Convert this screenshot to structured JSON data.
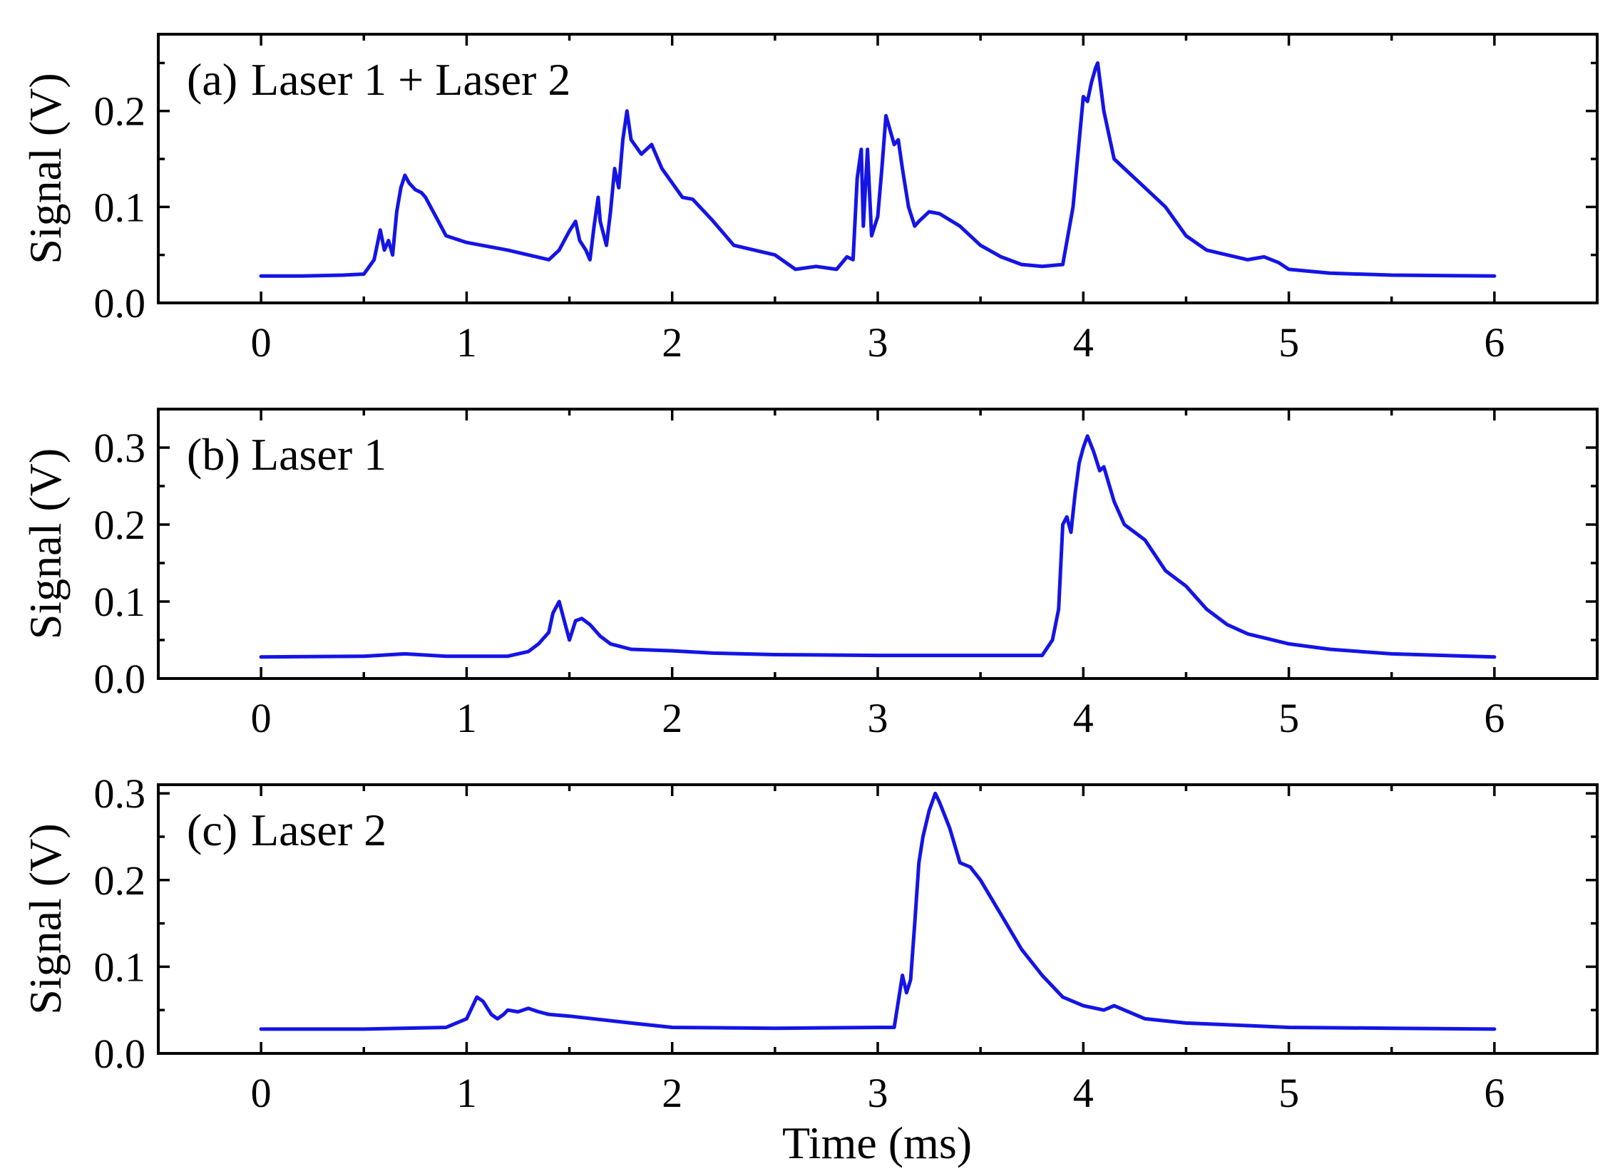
{
  "figure": {
    "xlabel": "Time (ms)",
    "ylabel": "Signal (V)",
    "line_color": "#1414e6"
  },
  "chart_data": [
    {
      "type": "line",
      "panel": "a",
      "label": "(a)",
      "title": "Laser 1 + Laser 2",
      "xlabel": "Time (ms)",
      "ylabel": "Signal (V)",
      "xlim": [
        -0.5,
        6.5
      ],
      "ylim": [
        0,
        0.28
      ],
      "xticks": [
        0,
        1,
        2,
        3,
        4,
        5,
        6
      ],
      "xtick_labels": [
        "0",
        "1",
        "2",
        "3",
        "4",
        "5",
        "6"
      ],
      "yticks": [
        0.0,
        0.1,
        0.2
      ],
      "ytick_labels": [
        "0.0",
        "0.1",
        "0.2"
      ],
      "series": [
        {
          "name": "Laser 1 + Laser 2",
          "x": [
            0,
            0.2,
            0.4,
            0.5,
            0.55,
            0.58,
            0.6,
            0.62,
            0.64,
            0.66,
            0.68,
            0.7,
            0.72,
            0.75,
            0.78,
            0.8,
            0.85,
            0.9,
            1.0,
            1.2,
            1.4,
            1.45,
            1.5,
            1.53,
            1.55,
            1.58,
            1.6,
            1.62,
            1.64,
            1.65,
            1.68,
            1.7,
            1.72,
            1.74,
            1.76,
            1.78,
            1.8,
            1.85,
            1.9,
            1.95,
            2.0,
            2.05,
            2.1,
            2.2,
            2.3,
            2.5,
            2.6,
            2.7,
            2.8,
            2.85,
            2.88,
            2.9,
            2.92,
            2.93,
            2.95,
            2.97,
            3.0,
            3.02,
            3.04,
            3.06,
            3.08,
            3.1,
            3.12,
            3.15,
            3.18,
            3.2,
            3.25,
            3.3,
            3.4,
            3.5,
            3.6,
            3.7,
            3.8,
            3.9,
            3.95,
            4.0,
            4.02,
            4.04,
            4.06,
            4.07,
            4.1,
            4.15,
            4.2,
            4.3,
            4.4,
            4.5,
            4.6,
            4.7,
            4.8,
            4.88,
            4.95,
            5.0,
            5.2,
            5.5,
            6.0
          ],
          "y": [
            0.028,
            0.028,
            0.029,
            0.03,
            0.045,
            0.076,
            0.055,
            0.065,
            0.05,
            0.095,
            0.12,
            0.133,
            0.125,
            0.118,
            0.115,
            0.11,
            0.09,
            0.07,
            0.063,
            0.055,
            0.045,
            0.055,
            0.075,
            0.085,
            0.065,
            0.055,
            0.045,
            0.08,
            0.11,
            0.085,
            0.06,
            0.095,
            0.14,
            0.12,
            0.17,
            0.2,
            0.17,
            0.155,
            0.165,
            0.14,
            0.125,
            0.11,
            0.108,
            0.085,
            0.06,
            0.05,
            0.035,
            0.038,
            0.035,
            0.048,
            0.045,
            0.13,
            0.16,
            0.08,
            0.16,
            0.07,
            0.09,
            0.14,
            0.195,
            0.18,
            0.165,
            0.17,
            0.14,
            0.1,
            0.08,
            0.085,
            0.095,
            0.093,
            0.08,
            0.06,
            0.048,
            0.04,
            0.038,
            0.04,
            0.1,
            0.215,
            0.21,
            0.23,
            0.245,
            0.25,
            0.2,
            0.15,
            0.14,
            0.12,
            0.1,
            0.07,
            0.055,
            0.05,
            0.045,
            0.048,
            0.042,
            0.035,
            0.031,
            0.029,
            0.028
          ]
        }
      ]
    },
    {
      "type": "line",
      "panel": "b",
      "label": "(b)",
      "title": "Laser 1",
      "xlabel": "Time (ms)",
      "ylabel": "Signal (V)",
      "xlim": [
        -0.5,
        6.5
      ],
      "ylim": [
        0,
        0.35
      ],
      "xticks": [
        0,
        1,
        2,
        3,
        4,
        5,
        6
      ],
      "xtick_labels": [
        "0",
        "1",
        "2",
        "3",
        "4",
        "5",
        "6"
      ],
      "yticks": [
        0.0,
        0.1,
        0.2,
        0.3
      ],
      "ytick_labels": [
        "0.0",
        "0.1",
        "0.2",
        "0.3"
      ],
      "series": [
        {
          "name": "Laser 1",
          "x": [
            0,
            0.5,
            0.7,
            0.9,
            1.2,
            1.3,
            1.35,
            1.4,
            1.42,
            1.45,
            1.48,
            1.5,
            1.53,
            1.56,
            1.6,
            1.65,
            1.7,
            1.8,
            2.0,
            2.2,
            2.5,
            3.0,
            3.5,
            3.8,
            3.85,
            3.88,
            3.9,
            3.92,
            3.94,
            3.96,
            3.98,
            4.0,
            4.02,
            4.05,
            4.08,
            4.1,
            4.15,
            4.2,
            4.3,
            4.4,
            4.5,
            4.6,
            4.7,
            4.8,
            5.0,
            5.2,
            5.5,
            6.0
          ],
          "y": [
            0.028,
            0.029,
            0.032,
            0.029,
            0.029,
            0.035,
            0.045,
            0.06,
            0.085,
            0.1,
            0.07,
            0.05,
            0.075,
            0.078,
            0.07,
            0.055,
            0.045,
            0.038,
            0.036,
            0.033,
            0.031,
            0.03,
            0.03,
            0.03,
            0.05,
            0.09,
            0.2,
            0.21,
            0.19,
            0.24,
            0.28,
            0.3,
            0.315,
            0.295,
            0.27,
            0.275,
            0.23,
            0.2,
            0.18,
            0.14,
            0.12,
            0.09,
            0.07,
            0.058,
            0.045,
            0.038,
            0.032,
            0.028
          ]
        }
      ]
    },
    {
      "type": "line",
      "panel": "c",
      "label": "(c)",
      "title": "Laser 2",
      "xlabel": "Time (ms)",
      "ylabel": "Signal (V)",
      "xlim": [
        -0.5,
        6.5
      ],
      "ylim": [
        0,
        0.31
      ],
      "xticks": [
        0,
        1,
        2,
        3,
        4,
        5,
        6
      ],
      "xtick_labels": [
        "0",
        "1",
        "2",
        "3",
        "4",
        "5",
        "6"
      ],
      "yticks": [
        0.0,
        0.1,
        0.2,
        0.3
      ],
      "ytick_labels": [
        "0.0",
        "0.1",
        "0.2",
        "0.3"
      ],
      "series": [
        {
          "name": "Laser 2",
          "x": [
            0,
            0.5,
            0.9,
            1.0,
            1.05,
            1.08,
            1.12,
            1.15,
            1.18,
            1.2,
            1.25,
            1.3,
            1.35,
            1.4,
            1.5,
            1.8,
            2.0,
            2.5,
            3.0,
            3.08,
            3.12,
            3.14,
            3.16,
            3.18,
            3.2,
            3.22,
            3.25,
            3.28,
            3.3,
            3.35,
            3.4,
            3.45,
            3.5,
            3.6,
            3.7,
            3.8,
            3.9,
            4.0,
            4.1,
            4.15,
            4.3,
            4.5,
            5.0,
            5.5,
            6.0
          ],
          "y": [
            0.028,
            0.028,
            0.03,
            0.04,
            0.065,
            0.06,
            0.045,
            0.04,
            0.045,
            0.05,
            0.048,
            0.052,
            0.048,
            0.045,
            0.043,
            0.035,
            0.03,
            0.029,
            0.03,
            0.03,
            0.09,
            0.07,
            0.085,
            0.15,
            0.22,
            0.25,
            0.28,
            0.3,
            0.29,
            0.26,
            0.22,
            0.215,
            0.2,
            0.16,
            0.12,
            0.09,
            0.065,
            0.055,
            0.05,
            0.055,
            0.04,
            0.035,
            0.03,
            0.029,
            0.028
          ]
        }
      ]
    }
  ]
}
